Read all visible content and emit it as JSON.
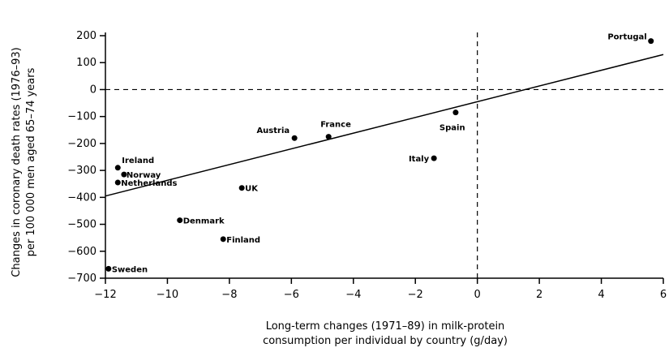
{
  "chart_data": {
    "type": "scatter",
    "title": "",
    "xlabel": [
      "Long-term changes (1971–89) in milk-protein",
      "consumption per individual by country (g/day)"
    ],
    "ylabel": [
      "Changes in coronary death rates (1976–93)",
      "per 100 000 men aged 65–74 years"
    ],
    "xlim": [
      -12,
      6
    ],
    "ylim": [
      -700,
      200
    ],
    "xticks": [
      -12,
      -10,
      -8,
      -6,
      -4,
      -2,
      0,
      2,
      4,
      6
    ],
    "yticks": [
      200,
      100,
      0,
      -100,
      -200,
      -300,
      -400,
      -500,
      -600,
      -700
    ],
    "xtick_labels": [
      "−12",
      "−10",
      "−8",
      "−6",
      "−4",
      "−2",
      "0",
      "2",
      "4",
      "6"
    ],
    "ytick_labels": [
      "200",
      "100",
      "0",
      "−100",
      "−200",
      "−300",
      "−400",
      "−500",
      "−600",
      "−700"
    ],
    "points": [
      {
        "label": "Portugal",
        "x": 5.6,
        "y": 180
      },
      {
        "label": "Spain",
        "x": -0.7,
        "y": -85
      },
      {
        "label": "Italy",
        "x": -1.4,
        "y": -255
      },
      {
        "label": "France",
        "x": -4.8,
        "y": -175
      },
      {
        "label": "Austria",
        "x": -5.9,
        "y": -180
      },
      {
        "label": "UK",
        "x": -7.6,
        "y": -365
      },
      {
        "label": "Ireland",
        "x": -11.6,
        "y": -290
      },
      {
        "label": "Norway",
        "x": -11.4,
        "y": -315
      },
      {
        "label": "Netherlands",
        "x": -11.6,
        "y": -345
      },
      {
        "label": "Denmark",
        "x": -9.6,
        "y": -485
      },
      {
        "label": "Finland",
        "x": -8.2,
        "y": -555
      },
      {
        "label": "Sweden",
        "x": -11.9,
        "y": -665
      }
    ],
    "regression_line": {
      "x": [
        -12,
        6
      ],
      "y": [
        -395,
        130
      ]
    },
    "reference_lines": {
      "x": 0,
      "y": 0
    }
  }
}
